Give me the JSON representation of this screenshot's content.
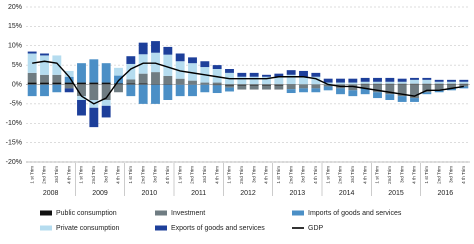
{
  "chart_data": {
    "type": "bar",
    "categories": [
      "1 st Trim",
      "2nd Trim",
      "3rd Trim",
      "4 th Trim",
      "1 st Trim",
      "2nd Trim",
      "3rd Trim",
      "4 th Trim",
      "1 st Trim",
      "2nd Trim",
      "3rd Trim",
      "4 th Trim",
      "1 st Trim",
      "2nd Trim",
      "3rd Trim",
      "4 th Trim",
      "1 st Trim",
      "2nd Trim",
      "3rd Trim",
      "4 th Trim",
      "1 st Trim",
      "2nd Trim",
      "3rd Trim",
      "4 th Trim",
      "1 st Trim",
      "2nd Trim",
      "3rd Trim",
      "4 th Trim",
      "1 st Trim",
      "2nd Trim",
      "3rd Trim",
      "4 th Trim",
      "1 st Trim",
      "2nd Trim",
      "3rd Trim",
      "4 th Trim"
    ],
    "years": [
      "2008",
      "2009",
      "2010",
      "2011",
      "2012",
      "2013",
      "2014",
      "2015",
      "2016"
    ],
    "series": [
      {
        "name": "Public consumption",
        "color": "#111111",
        "values": [
          0.5,
          0.5,
          0.5,
          0.5,
          0.5,
          0.5,
          0.5,
          0.3,
          0.3,
          0.3,
          0.2,
          0.2,
          0,
          0,
          0,
          -0.2,
          -0.3,
          -0.3,
          -0.3,
          -0.3,
          -0.3,
          -0.2,
          0,
          0,
          0,
          0,
          0,
          0.2,
          0.2,
          0.2,
          0.2,
          0.2,
          0.2,
          0.2,
          0.2,
          0.2
        ]
      },
      {
        "name": "Investment",
        "color": "#6f7c82",
        "values": [
          2.5,
          2,
          2,
          -1,
          -3,
          -4,
          -4,
          -2,
          1,
          2.5,
          3,
          2,
          1.5,
          1,
          0.5,
          0.5,
          -0.5,
          -1,
          -1,
          -1,
          -1,
          -1,
          -1,
          -1,
          -0.5,
          -1,
          -1.5,
          -1,
          -2,
          -2.5,
          -3,
          -3.5,
          -2,
          -1.5,
          -1,
          -0.5
        ]
      },
      {
        "name": "Imports of goods and services",
        "color": "#4b8fc6",
        "values": [
          -3,
          -3,
          -2,
          1.5,
          5,
          6,
          5,
          2,
          -3,
          -5,
          -5,
          -4,
          -3,
          -3,
          -2,
          -2,
          -1,
          0,
          0,
          0,
          0,
          -1,
          -1,
          -1,
          -1,
          -1.5,
          -1.5,
          -1.5,
          -1.5,
          -1.5,
          -1.5,
          -1,
          -0.5,
          -0.5,
          -0.5,
          -0.5
        ]
      },
      {
        "name": "Private consumption",
        "color": "#b5dcef",
        "values": [
          5,
          5,
          5,
          1.5,
          -1,
          -2,
          -1.5,
          2,
          4,
          5,
          5,
          5.5,
          4.5,
          4.5,
          4,
          3.5,
          3,
          2,
          2,
          2,
          2,
          2.5,
          2,
          2,
          0.5,
          0.5,
          0.5,
          0.5,
          0.5,
          0.5,
          0.5,
          1,
          1,
          0.5,
          0.5,
          0.5
        ]
      },
      {
        "name": "Exports of goods and services",
        "color": "#1d3f9a",
        "values": [
          0.5,
          0.5,
          0,
          -1,
          -4,
          -5,
          -3,
          0,
          2,
          3,
          3,
          2,
          2,
          1.5,
          1.5,
          1,
          1,
          1,
          1,
          0.5,
          0.8,
          1.2,
          1.5,
          1,
          1,
          1,
          1,
          1,
          1,
          1,
          0.8,
          0.5,
          0.5,
          0.5,
          0.5,
          0.5
        ]
      },
      {
        "name": "GDP",
        "type": "line",
        "color": "#000000",
        "values": [
          5.5,
          6,
          5.5,
          2,
          -3,
          -5,
          -3.5,
          1,
          4,
          5.5,
          5.5,
          4.5,
          3.5,
          3,
          2.5,
          2,
          1.5,
          1.5,
          1.5,
          1.5,
          2,
          2,
          2,
          1.5,
          0,
          -0.5,
          -0.5,
          -1,
          -1.5,
          -2,
          -2.5,
          -3,
          -1.5,
          -1.5,
          -1,
          -0.5
        ]
      }
    ],
    "ylim": [
      -20,
      20
    ],
    "yticks": [
      {
        "value": -20,
        "label": "-20%"
      },
      {
        "value": -15,
        "label": "-15%"
      },
      {
        "value": -10,
        "label": "-10%"
      },
      {
        "value": -5,
        "label": "-5%"
      },
      {
        "value": 0,
        "label": "0%"
      },
      {
        "value": 5,
        "label": "5%"
      },
      {
        "value": 10,
        "label": "10%"
      },
      {
        "value": 15,
        "label": "15%"
      },
      {
        "value": 20,
        "label": "20%"
      }
    ],
    "grid": true
  }
}
